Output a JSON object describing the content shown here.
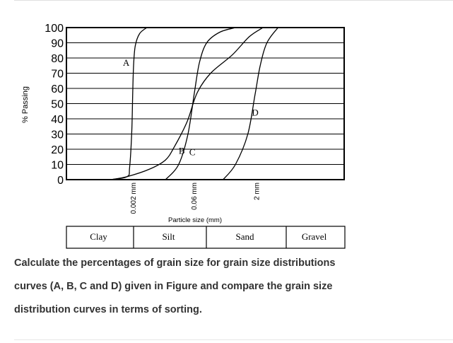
{
  "chart_data": {
    "type": "line",
    "title": "",
    "ylabel": "% Passing",
    "xlabel": "Particle size (mm)",
    "ylim": [
      0,
      100
    ],
    "yticks": [
      "0",
      "10",
      "20",
      "30",
      "40",
      "50",
      "60",
      "70",
      "80",
      "90",
      "100"
    ],
    "x_scale": "log",
    "x_reference_labels": [
      {
        "label": "0.002 mm",
        "value": 0.002
      },
      {
        "label": "0.06 mm",
        "value": 0.06
      },
      {
        "label": "2 mm",
        "value": 2
      }
    ],
    "series": [
      {
        "name": "A",
        "points": [
          [
            0.00055,
            0
          ],
          [
            0.0014,
            2
          ],
          [
            0.0016,
            8
          ],
          [
            0.0018,
            30
          ],
          [
            0.0019,
            55
          ],
          [
            0.002,
            75
          ],
          [
            0.0022,
            88
          ],
          [
            0.0028,
            96
          ],
          [
            0.0042,
            100
          ]
        ]
      },
      {
        "name": "B",
        "points": [
          [
            0.00055,
            0
          ],
          [
            0.0014,
            2
          ],
          [
            0.005,
            7
          ],
          [
            0.012,
            13
          ],
          [
            0.02,
            22
          ],
          [
            0.04,
            38
          ],
          [
            0.07,
            57
          ],
          [
            0.15,
            70
          ],
          [
            0.5,
            82
          ],
          [
            1.3,
            94
          ],
          [
            2.8,
            100
          ]
        ]
      },
      {
        "name": "C",
        "points": [
          [
            0.012,
            0
          ],
          [
            0.025,
            10
          ],
          [
            0.042,
            30
          ],
          [
            0.06,
            57
          ],
          [
            0.08,
            77
          ],
          [
            0.12,
            90
          ],
          [
            0.25,
            97
          ],
          [
            0.6,
            100
          ]
        ]
      },
      {
        "name": "D",
        "points": [
          [
            0.3,
            0
          ],
          [
            0.6,
            10
          ],
          [
            1.2,
            30
          ],
          [
            1.8,
            56
          ],
          [
            2.4,
            75
          ],
          [
            3.5,
            90
          ],
          [
            6.5,
            100
          ]
        ]
      }
    ],
    "curve_labels": [
      "A",
      "B",
      "C",
      "D"
    ],
    "legend": "none",
    "grid": "horizontal",
    "classification": [
      "Clay",
      "Silt",
      "Sand",
      "Gravel"
    ]
  },
  "question": {
    "line1": "Calculate the percentages of grain size for grain size distributions",
    "line2": "curves (A, B, C and D) given in Figure and compare the grain size",
    "line3": "distribution curves in terms of sorting."
  },
  "colors": {
    "curve": "#000000",
    "grid": "#000000",
    "text": "#333333"
  }
}
